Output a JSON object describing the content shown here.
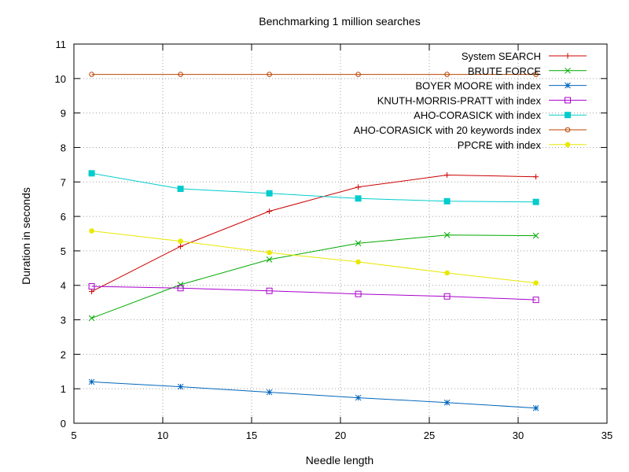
{
  "chart_data": {
    "type": "line",
    "title": "Benchmarking 1 million searches",
    "xlabel": "Needle length",
    "ylabel": "Duration in seconds",
    "xlim": [
      5,
      35
    ],
    "ylim": [
      0,
      11
    ],
    "xticks": [
      5,
      10,
      15,
      20,
      25,
      30,
      35
    ],
    "yticks": [
      0,
      1,
      2,
      3,
      4,
      5,
      6,
      7,
      8,
      9,
      10,
      11
    ],
    "grid": true,
    "legend_position": "top-right",
    "x": [
      6,
      11,
      16,
      21,
      26,
      31
    ],
    "series": [
      {
        "name": "System SEARCH",
        "color": "#cc0000",
        "marker": "plus",
        "values": [
          3.82,
          5.13,
          6.15,
          6.85,
          7.2,
          7.15
        ]
      },
      {
        "name": "BRUTE FORCE",
        "color": "#00aa00",
        "marker": "cross",
        "values": [
          3.05,
          4.02,
          4.75,
          5.22,
          5.46,
          5.44
        ]
      },
      {
        "name": "BOYER MOORE with index",
        "color": "#0066bb",
        "marker": "star",
        "values": [
          1.2,
          1.06,
          0.9,
          0.74,
          0.6,
          0.44
        ]
      },
      {
        "name": "KNUTH-MORRIS-PRATT with index",
        "color": "#aa00cc",
        "marker": "square-open",
        "values": [
          3.97,
          3.92,
          3.84,
          3.75,
          3.68,
          3.58
        ]
      },
      {
        "name": "AHO-CORASICK with index",
        "color": "#00cccc",
        "marker": "square-filled",
        "values": [
          7.25,
          6.8,
          6.67,
          6.52,
          6.44,
          6.42
        ]
      },
      {
        "name": "AHO-CORASICK with 20 keywords index",
        "color": "#bb4400",
        "marker": "circle-open",
        "values": [
          10.12,
          10.12,
          10.12,
          10.12,
          10.12,
          10.12
        ]
      },
      {
        "name": "PPCRE with index",
        "color": "#e8e800",
        "marker": "circle-filled",
        "values": [
          5.58,
          5.28,
          4.95,
          4.68,
          4.36,
          4.07
        ]
      }
    ]
  }
}
